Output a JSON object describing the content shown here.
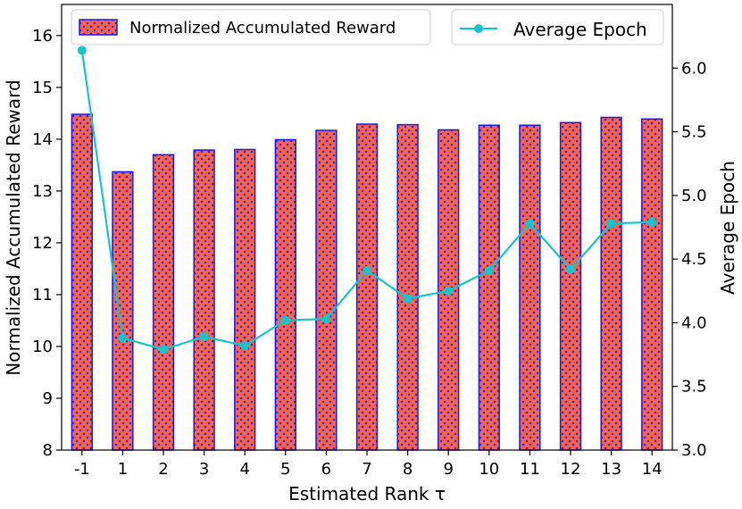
{
  "chart_data": {
    "type": "bar",
    "categories": [
      "-1",
      "1",
      "2",
      "3",
      "4",
      "5",
      "6",
      "7",
      "8",
      "9",
      "10",
      "11",
      "12",
      "13",
      "14"
    ],
    "xlabel": "Estimated Rank τ",
    "series": [
      {
        "name": "Normalized Accumulated Reward",
        "type": "bar",
        "axis": "left",
        "values": [
          14.48,
          13.37,
          13.7,
          13.79,
          13.8,
          13.99,
          14.17,
          14.29,
          14.28,
          14.18,
          14.27,
          14.27,
          14.32,
          14.42,
          14.39
        ]
      },
      {
        "name": "Average Epoch",
        "type": "line",
        "axis": "right",
        "values": [
          6.14,
          3.88,
          3.79,
          3.89,
          3.82,
          4.02,
          4.03,
          4.41,
          4.19,
          4.25,
          4.41,
          4.78,
          4.42,
          4.78,
          4.79
        ]
      }
    ],
    "ylabel": "Normalized Accumulated Reward",
    "ylim": [
      8,
      16.6
    ],
    "yticks": [
      "8",
      "9",
      "10",
      "11",
      "12",
      "13",
      "14",
      "15",
      "16"
    ],
    "y2label": "Average Epoch",
    "y2lim": [
      3.0,
      6.5
    ],
    "y2ticks": [
      "3.0",
      "3.5",
      "4.0",
      "4.5",
      "5.0",
      "5.5",
      "6.0"
    ],
    "colors": {
      "bar_fill": "#fa6347",
      "bar_edge": "#1a1aee",
      "bar_dots": "#2a2ae0",
      "line": "#17c4c9"
    },
    "bar_hatch": "dots",
    "line_marker": "circle",
    "grid": false,
    "legend_bar_placement": "upper-left",
    "legend_line_placement": "upper-right"
  }
}
